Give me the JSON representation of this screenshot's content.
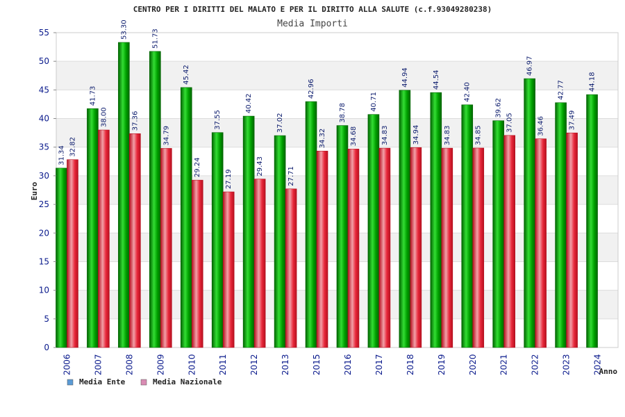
{
  "colors": {
    "ente": "#00a000",
    "nazionale": "#e8273a",
    "legend_ente": "#5b9bd5",
    "legend_nazionale": "#d98cb3",
    "grid_band": "#f1f1f1",
    "axis_text": "#0a1a8c"
  },
  "chart_data": {
    "type": "bar",
    "title": "CENTRO PER I DIRITTI DEL MALATO E PER IL DIRITTO ALLA SALUTE (c.f.93049280238)",
    "subtitle": "Media Importi",
    "xlabel": "Anno",
    "ylabel": "Euro",
    "ylim": [
      0,
      55
    ],
    "yticks": [
      "0",
      "5",
      "10",
      "15",
      "20",
      "25",
      "30",
      "35",
      "40",
      "45",
      "50",
      "55"
    ],
    "categories": [
      "2006",
      "2007",
      "2008",
      "2009",
      "2010",
      "2011",
      "2012",
      "2013",
      "2015",
      "2016",
      "2017",
      "2018",
      "2019",
      "2020",
      "2021",
      "2022",
      "2023",
      "2024"
    ],
    "series": [
      {
        "name": "Media Ente",
        "values": [
          31.34,
          41.73,
          53.3,
          51.73,
          45.42,
          37.55,
          40.42,
          37.02,
          42.96,
          38.78,
          40.71,
          44.94,
          44.54,
          42.4,
          39.62,
          46.97,
          42.77,
          44.18
        ],
        "labels": [
          "31.34",
          "41.73",
          "53.30",
          "51.73",
          "45.42",
          "37.55",
          "40.42",
          "37.02",
          "42.96",
          "38.78",
          "40.71",
          "44.94",
          "44.54",
          "42.40",
          "39.62",
          "46.97",
          "42.77",
          "44.18"
        ]
      },
      {
        "name": "Media Nazionale",
        "values": [
          32.82,
          38.0,
          37.36,
          34.79,
          29.24,
          27.19,
          29.43,
          27.71,
          34.32,
          34.68,
          34.83,
          34.94,
          34.83,
          34.85,
          37.05,
          36.46,
          37.49,
          null
        ],
        "labels": [
          "32.82",
          "38.00",
          "37.36",
          "34.79",
          "29.24",
          "27.19",
          "29.43",
          "27.71",
          "34.32",
          "34.68",
          "34.83",
          "34.94",
          "34.83",
          "34.85",
          "37.05",
          "36.46",
          "37.49",
          null
        ]
      }
    ],
    "grid": true,
    "legend_position": "bottom-left"
  }
}
